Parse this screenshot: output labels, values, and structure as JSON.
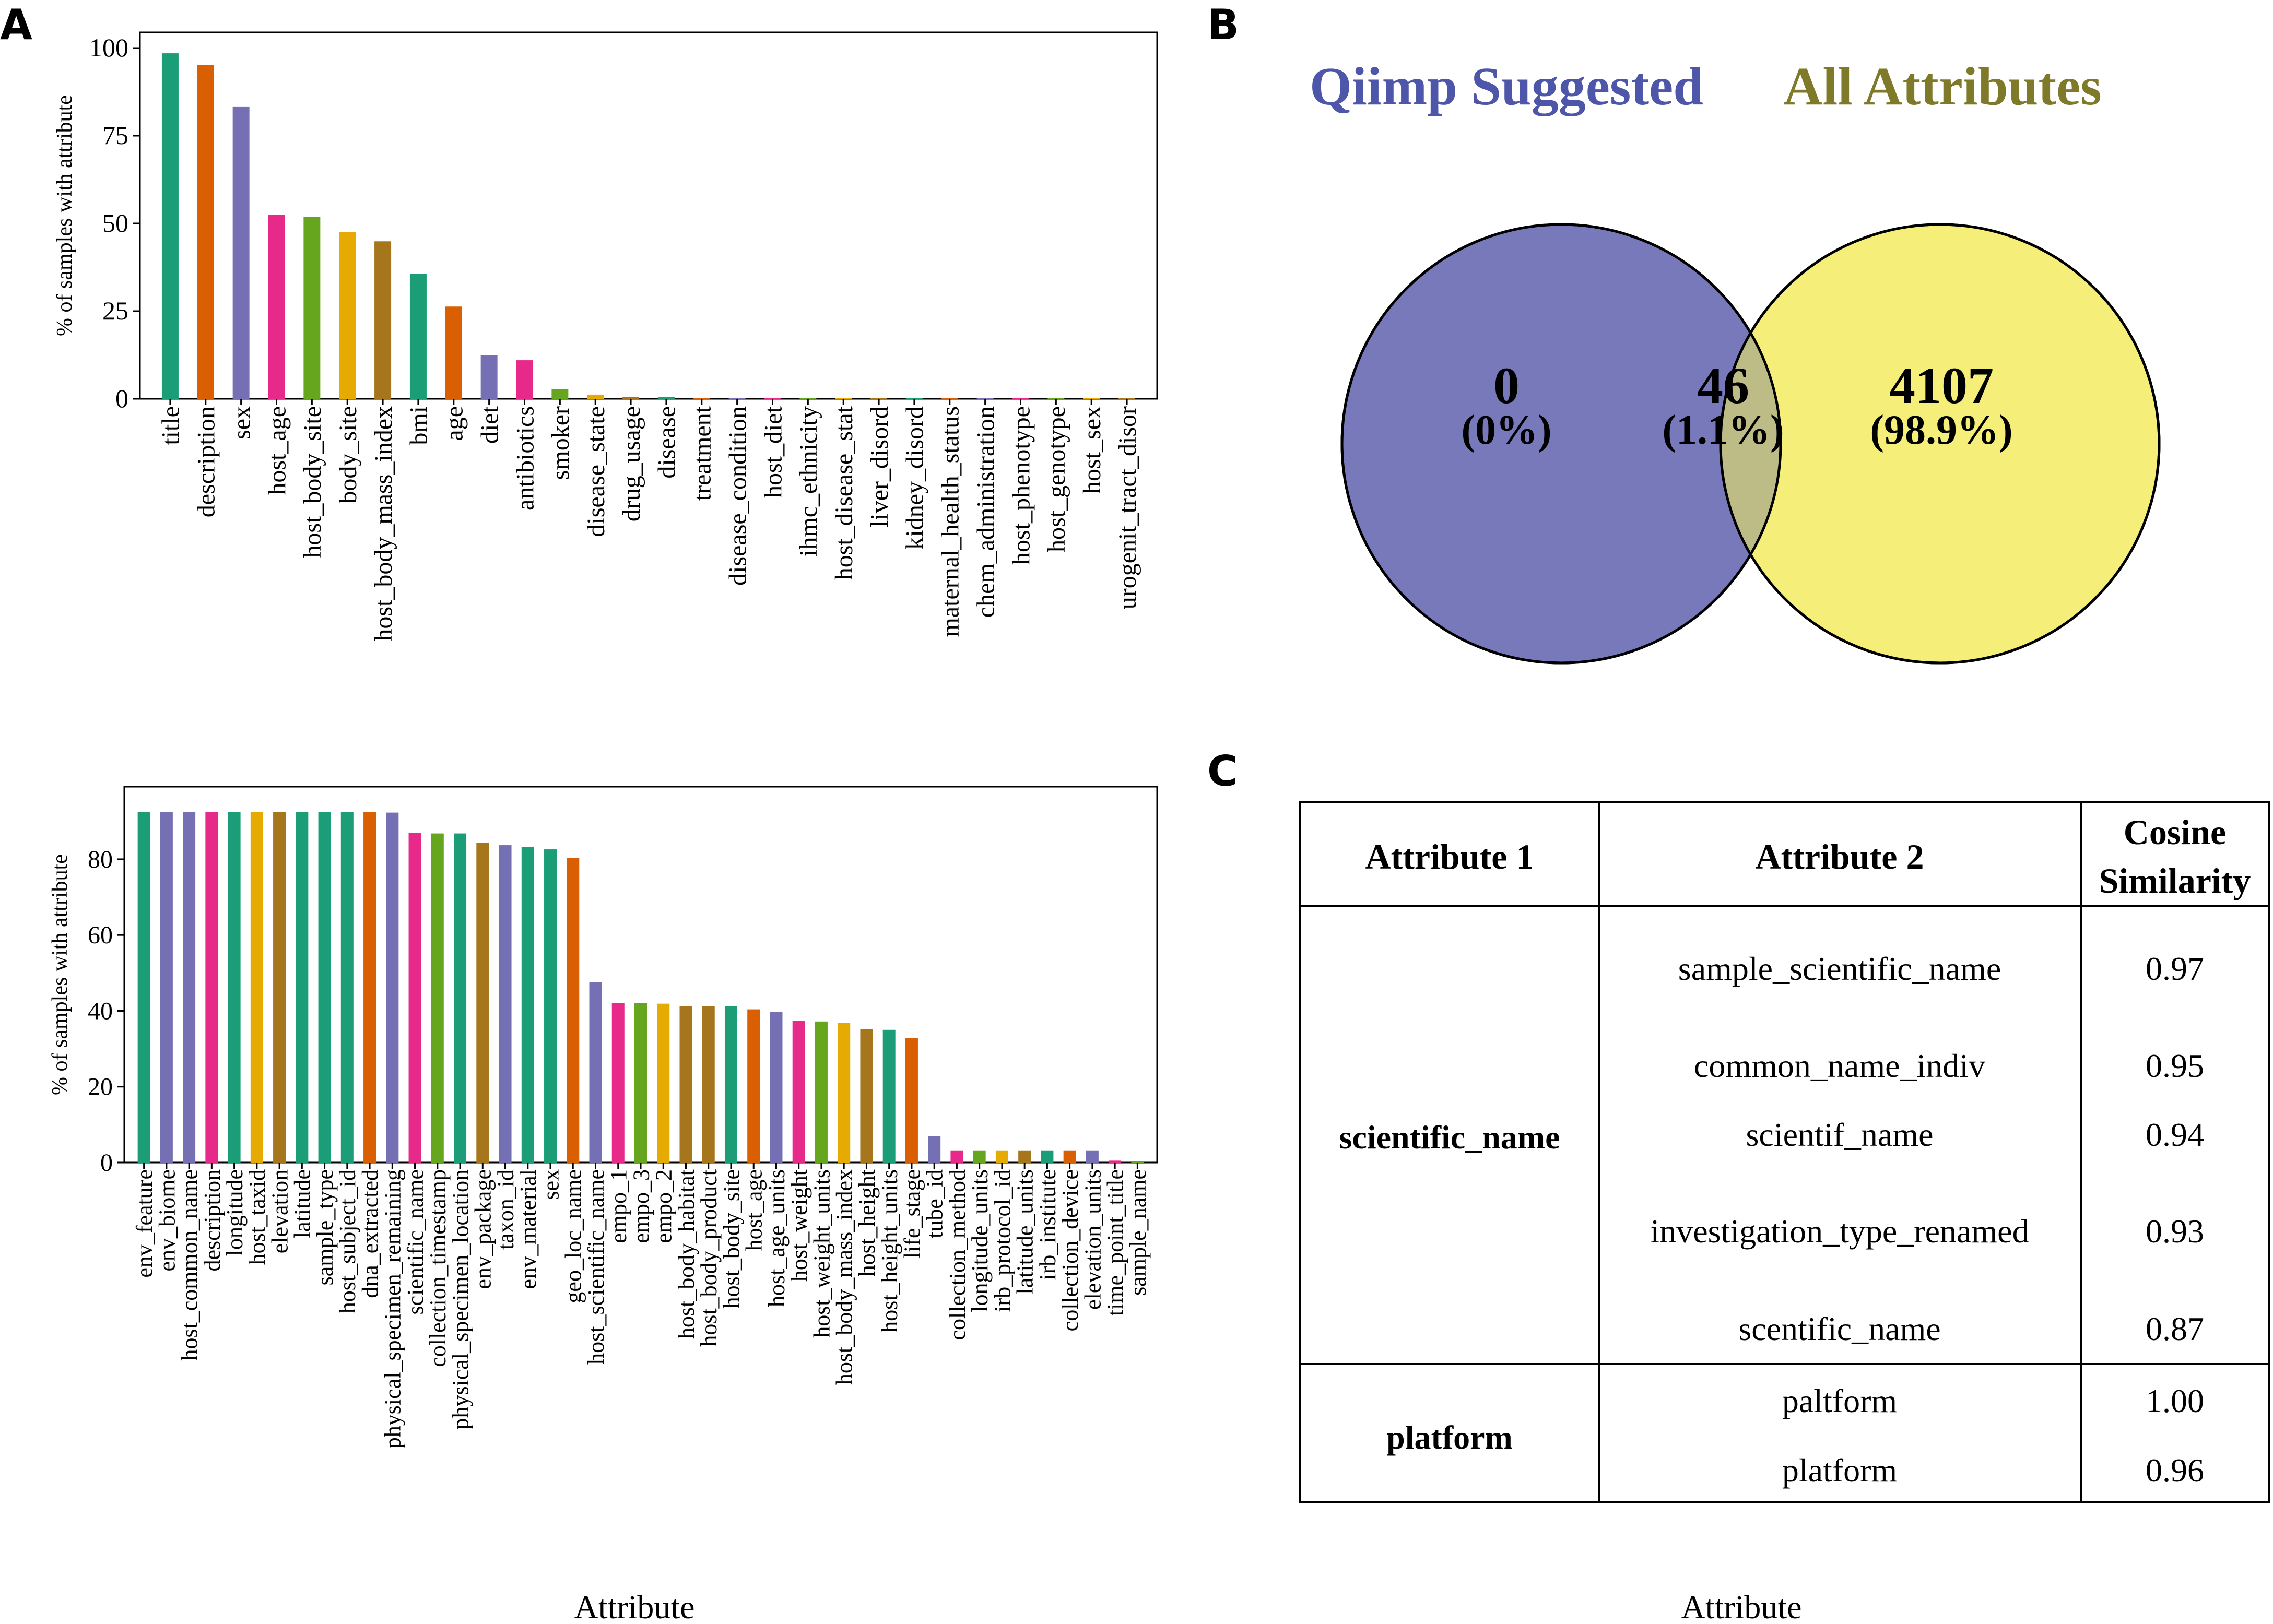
{
  "panel_labels": {
    "a": "A",
    "b": "B",
    "c": "C"
  },
  "bottom_labels": {
    "left": "Attribute",
    "right": "Attribute"
  },
  "chart_data": [
    {
      "type": "bar",
      "ylabel": "% of samples with attribute",
      "ylim": [
        0,
        100
      ],
      "yticks": [
        0,
        25,
        50,
        75,
        100
      ],
      "grid": false,
      "categories": [
        "title",
        "description",
        "sex",
        "host_age",
        "host_body_site",
        "body_site",
        "host_body_mass_index",
        "bmi",
        "age",
        "diet",
        "antibiotics",
        "smoker",
        "disease_state",
        "drug_usage",
        "disease",
        "treatment",
        "disease_condition",
        "host_diet",
        "ihmc_ethnicity",
        "host_disease_stat",
        "liver_disord",
        "kidney_disord",
        "maternal_health_status",
        "chem_administration",
        "host_phenotype",
        "host_genotype",
        "host_sex",
        "urogenit_tract_disor"
      ],
      "values": [
        98.5,
        95.2,
        83.2,
        52.4,
        51.9,
        47.6,
        44.9,
        35.7,
        26.3,
        12.5,
        11.0,
        2.7,
        1.2,
        0.6,
        0.5,
        0.2,
        0.1,
        0.1,
        0.1,
        0.1,
        0.1,
        0.1,
        0.1,
        0.1,
        0.1,
        0.1,
        0.1,
        0.1
      ],
      "colors": [
        "#1b9e77",
        "#d95f02",
        "#7570b3",
        "#e7298a",
        "#66a61e",
        "#e6ab02",
        "#a6761d"
      ]
    },
    {
      "type": "bar",
      "ylabel": "% of samples with attribute",
      "ylim": [
        0,
        95
      ],
      "yticks": [
        0,
        20,
        40,
        60,
        80
      ],
      "grid": false,
      "categories": [
        "env_feature",
        "env_biome",
        "host_common_name",
        "description",
        "longitude",
        "host_taxid",
        "elevation",
        "latitude",
        "sample_type",
        "host_subject_id",
        "dna_extracted",
        "physical_specimen_remaining",
        "scientific_name",
        "collection_timestamp",
        "physical_specimen_location",
        "env_package",
        "taxon_id",
        "env_material",
        "sex",
        "geo_loc_name",
        "host_scientific_name",
        "empo_1",
        "empo_3",
        "empo_2",
        "host_body_habitat",
        "host_body_product",
        "host_body_site",
        "host_age",
        "host_age_units",
        "host_weight",
        "host_weight_units",
        "host_body_mass_index",
        "host_height",
        "host_height_units",
        "life_stage",
        "tube_id",
        "collection_method",
        "longitude_units",
        "irb_protocol_id",
        "latitude_units",
        "irb_institute",
        "collection_device",
        "elevation_units",
        "time_point_title",
        "sample_name"
      ],
      "values": [
        92.5,
        92.5,
        92.5,
        92.5,
        92.5,
        92.5,
        92.5,
        92.5,
        92.5,
        92.5,
        92.5,
        92.3,
        87.0,
        86.8,
        86.8,
        84.3,
        83.7,
        83.3,
        82.6,
        80.3,
        47.6,
        42.0,
        42.0,
        41.9,
        41.3,
        41.2,
        41.2,
        40.4,
        39.7,
        37.4,
        37.2,
        36.8,
        35.2,
        35.0,
        32.9,
        7.0,
        3.2,
        3.2,
        3.2,
        3.2,
        3.2,
        3.2,
        3.2,
        0.5,
        0.3
      ],
      "colors": [
        "#1b9e77",
        "#7570b3",
        "#7570b3",
        "#e7298a",
        "#1b9e77",
        "#e6ab02",
        "#a6761d",
        "#1b9e77",
        "#1b9e77",
        "#1b9e77",
        "#d95f02",
        "#7570b3",
        "#e7298a",
        "#66a61e",
        "#1b9e77",
        "#a6761d",
        "#7570b3",
        "#1b9e77",
        "#1b9e77",
        "#d95f02",
        "#7570b3",
        "#e7298a",
        "#66a61e",
        "#e6ab02",
        "#a6761d",
        "#a6761d",
        "#1b9e77",
        "#d95f02",
        "#7570b3",
        "#e7298a",
        "#66a61e",
        "#e6ab02",
        "#a6761d",
        "#1b9e77",
        "#d95f02",
        "#7570b3",
        "#e7298a",
        "#66a61e",
        "#e6ab02",
        "#a6761d",
        "#1b9e77",
        "#d95f02",
        "#7570b3",
        "#e7298a",
        "#66a61e"
      ]
    }
  ],
  "venn": {
    "left_title": "Qiimp Suggested",
    "right_title": "All Attributes",
    "left_title_color": "#4d56a8",
    "right_title_color": "#7f7a2a",
    "left_fill": "#7779ba",
    "right_fill": "#f5ef7a",
    "overlap_fill": "#bdbb86",
    "left_only": {
      "count": "0",
      "pct": "(0%)"
    },
    "overlap": {
      "count": "46",
      "pct": "(1.1%)"
    },
    "right_only": {
      "count": "4107",
      "pct": "(98.9%)"
    }
  },
  "table": {
    "headers": {
      "attr1": "Attribute 1",
      "attr2": "Attribute 2",
      "cos_line1": "Cosine",
      "cos_line2": "Similarity"
    },
    "groups": [
      {
        "attribute": "scientific_name",
        "rows": [
          {
            "attr2": "sample_scientific_name",
            "score": "0.97"
          },
          {
            "attr2": "common_name_indiv",
            "score": "0.95"
          },
          {
            "attr2": "scientif_name",
            "score": "0.94"
          },
          {
            "attr2": "investigation_type_renamed",
            "score": "0.93"
          },
          {
            "attr2": "scentific_name",
            "score": "0.87"
          }
        ]
      },
      {
        "attribute": "platform",
        "rows": [
          {
            "attr2": "paltform",
            "score": "1.00"
          },
          {
            "attr2": "platform",
            "score": "0.96"
          }
        ]
      }
    ]
  }
}
